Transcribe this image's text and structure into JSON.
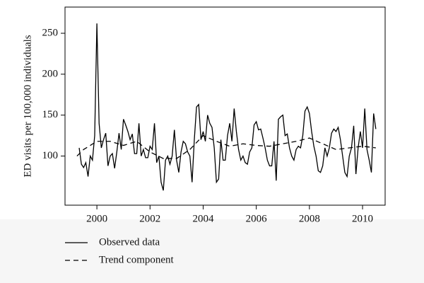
{
  "chart_data": {
    "type": "line",
    "ylabel": "ED visits per 100,000 individuals",
    "xlim": [
      1998.8,
      2010.85
    ],
    "ylim": [
      40,
      282
    ],
    "xticks": [
      2000,
      2002,
      2004,
      2006,
      2008,
      2010
    ],
    "yticks": [
      100,
      150,
      200,
      250
    ],
    "series": [
      {
        "name": "Observed data",
        "color": "#000000",
        "linestyle": "solid",
        "x": [
          1999.333,
          1999.417,
          1999.5,
          1999.583,
          1999.667,
          1999.75,
          1999.833,
          1999.917,
          2000,
          2000.083,
          2000.167,
          2000.25,
          2000.333,
          2000.417,
          2000.5,
          2000.583,
          2000.667,
          2000.75,
          2000.833,
          2000.917,
          2001,
          2001.083,
          2001.167,
          2001.25,
          2001.333,
          2001.417,
          2001.5,
          2001.583,
          2001.667,
          2001.75,
          2001.833,
          2001.917,
          2002,
          2002.083,
          2002.167,
          2002.25,
          2002.333,
          2002.417,
          2002.5,
          2002.583,
          2002.667,
          2002.75,
          2002.833,
          2002.917,
          2003,
          2003.083,
          2003.167,
          2003.25,
          2003.333,
          2003.417,
          2003.5,
          2003.583,
          2003.667,
          2003.75,
          2003.833,
          2003.917,
          2004,
          2004.083,
          2004.167,
          2004.25,
          2004.333,
          2004.417,
          2004.5,
          2004.583,
          2004.667,
          2004.75,
          2004.833,
          2004.917,
          2005,
          2005.083,
          2005.167,
          2005.25,
          2005.333,
          2005.417,
          2005.5,
          2005.583,
          2005.667,
          2005.75,
          2005.833,
          2005.917,
          2006,
          2006.083,
          2006.167,
          2006.25,
          2006.333,
          2006.417,
          2006.5,
          2006.583,
          2006.667,
          2006.75,
          2006.833,
          2006.917,
          2007,
          2007.083,
          2007.167,
          2007.25,
          2007.333,
          2007.417,
          2007.5,
          2007.583,
          2007.667,
          2007.75,
          2007.833,
          2007.917,
          2008,
          2008.083,
          2008.167,
          2008.25,
          2008.333,
          2008.417,
          2008.5,
          2008.583,
          2008.667,
          2008.75,
          2008.833,
          2008.917,
          2009,
          2009.083,
          2009.167,
          2009.25,
          2009.333,
          2009.417,
          2009.5,
          2009.583,
          2009.667,
          2009.75,
          2009.833,
          2009.917,
          2010,
          2010.083,
          2010.167,
          2010.25,
          2010.333,
          2010.417,
          2010.5
        ],
        "values": [
          110,
          90,
          86,
          92,
          75,
          100,
          95,
          125,
          262,
          140,
          110,
          120,
          128,
          88,
          100,
          103,
          85,
          105,
          128,
          108,
          145,
          138,
          130,
          120,
          127,
          103,
          103,
          140,
          100,
          108,
          98,
          98,
          112,
          108,
          140,
          92,
          100,
          68,
          58,
          95,
          100,
          90,
          100,
          132,
          95,
          80,
          105,
          118,
          115,
          105,
          100,
          68,
          120,
          160,
          163,
          120,
          130,
          118,
          150,
          140,
          135,
          110,
          68,
          72,
          120,
          95,
          95,
          125,
          140,
          118,
          158,
          130,
          108,
          95,
          100,
          92,
          90,
          105,
          110,
          138,
          142,
          132,
          133,
          122,
          110,
          95,
          88,
          88,
          118,
          70,
          145,
          148,
          150,
          125,
          127,
          110,
          100,
          95,
          108,
          112,
          110,
          125,
          155,
          160,
          152,
          130,
          112,
          100,
          82,
          80,
          88,
          110,
          100,
          110,
          128,
          133,
          130,
          135,
          120,
          100,
          80,
          75,
          100,
          110,
          137,
          78,
          110,
          130,
          110,
          158,
          108,
          95,
          80,
          152,
          133
        ]
      },
      {
        "name": "Trend component",
        "color": "#000000",
        "linestyle": "dashed",
        "x": [
          1999.25,
          1999.5,
          2000,
          2000.5,
          2001,
          2001.5,
          2002,
          2002.5,
          2003,
          2003.5,
          2004,
          2004.5,
          2005,
          2005.5,
          2006,
          2006.5,
          2007,
          2007.5,
          2008,
          2008.5,
          2009,
          2009.5,
          2010,
          2010.5
        ],
        "values": [
          100,
          108,
          118,
          118,
          113,
          118,
          105,
          97,
          97,
          108,
          125,
          118,
          112,
          115,
          113,
          112,
          115,
          118,
          122,
          115,
          108,
          110,
          112,
          110
        ]
      }
    ]
  }
}
